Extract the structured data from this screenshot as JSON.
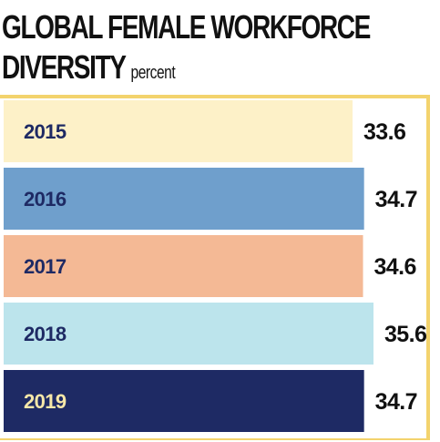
{
  "header": {
    "title": "GLOBAL FEMALE WORKFORCE",
    "title_line2": "DIVERSITY",
    "unit": "percent"
  },
  "chart_data": {
    "type": "bar",
    "orientation": "horizontal",
    "title": "GLOBAL FEMALE WORKFORCE DIVERSITY",
    "subtitle": "percent",
    "categories": [
      "2015",
      "2016",
      "2017",
      "2018",
      "2019"
    ],
    "values": [
      33.6,
      34.7,
      34.6,
      35.6,
      34.7
    ],
    "value_labels": [
      "33.6",
      "34.7",
      "34.6",
      "35.6",
      "34.7"
    ],
    "bar_colors": [
      "#fdf1c8",
      "#6f9fcc",
      "#f4b995",
      "#bce4ec",
      "#1e2a64"
    ],
    "category_label_colors": [
      "#1e2a64",
      "#1e2a64",
      "#1e2a64",
      "#1e2a64",
      "#f6e7a8"
    ],
    "frame_color": "#f3d36d",
    "grid": false,
    "legend": "none"
  }
}
